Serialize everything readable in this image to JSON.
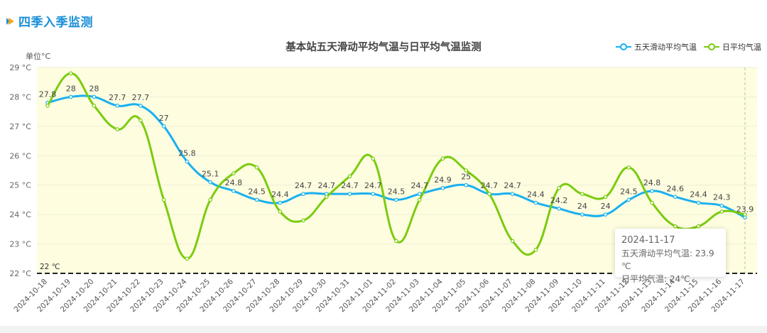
{
  "section": {
    "title": "四季入季监测",
    "icon": "play-triangle-icon"
  },
  "chart_data": {
    "type": "line",
    "title": "基本站五天滑动平均气温与日平均气温监测",
    "ylabel": "单位°C",
    "xlabel": "",
    "ylim": [
      22,
      29
    ],
    "yticks": [
      "22 °C",
      "23 °C",
      "24 °C",
      "25 °C",
      "26 °C",
      "27 °C",
      "28 °C",
      "29 °C"
    ],
    "grid": true,
    "legend_position": "top-right",
    "categories": [
      "2024-10-18",
      "2024-10-19",
      "2024-10-20",
      "2024-10-21",
      "2024-10-22",
      "2024-10-23",
      "2024-10-24",
      "2024-10-25",
      "2024-10-26",
      "2024-10-27",
      "2024-10-28",
      "2024-10-29",
      "2024-10-30",
      "2024-10-31",
      "2024-11-01",
      "2024-11-02",
      "2024-11-03",
      "2024-11-04",
      "2024-11-05",
      "2024-11-06",
      "2024-11-07",
      "2024-11-08",
      "2024-11-09",
      "2024-11-10",
      "2024-11-11",
      "2024-11-12",
      "2024-11-13",
      "2024-11-14",
      "2024-11-15",
      "2024-11-16",
      "2024-11-17"
    ],
    "series": [
      {
        "name": "五天滑动平均气温",
        "color": "#1ab0f0",
        "labels": true,
        "values": [
          27.8,
          28,
          28,
          27.7,
          27.7,
          27,
          25.8,
          25.1,
          24.8,
          24.5,
          24.4,
          24.7,
          24.7,
          24.7,
          24.7,
          24.5,
          24.7,
          24.9,
          25,
          24.7,
          24.7,
          24.4,
          24.2,
          24,
          24,
          24.5,
          24.8,
          24.6,
          24.4,
          24.3,
          23.9
        ]
      },
      {
        "name": "日平均气温",
        "color": "#7acc0e",
        "labels": false,
        "values": [
          27.7,
          28.8,
          27.7,
          26.9,
          27.2,
          24.5,
          22.5,
          24.5,
          25.4,
          25.6,
          24.1,
          23.8,
          24.6,
          25.3,
          25.9,
          23.1,
          24.5,
          25.9,
          25.5,
          24.7,
          23.1,
          22.8,
          24.9,
          24.7,
          24.6,
          25.6,
          24.4,
          23.6,
          23.6,
          24.1,
          24
        ]
      }
    ],
    "annotations": [
      {
        "type": "hline",
        "y": 22,
        "label": "22 ℃",
        "style": "dashed"
      }
    ],
    "plot_background": "#fefde0"
  },
  "tooltip": {
    "date": "2024-11-17",
    "line1": "五天滑动平均气温: 23.9 ℃",
    "line2": "日平均气温: 24℃"
  }
}
